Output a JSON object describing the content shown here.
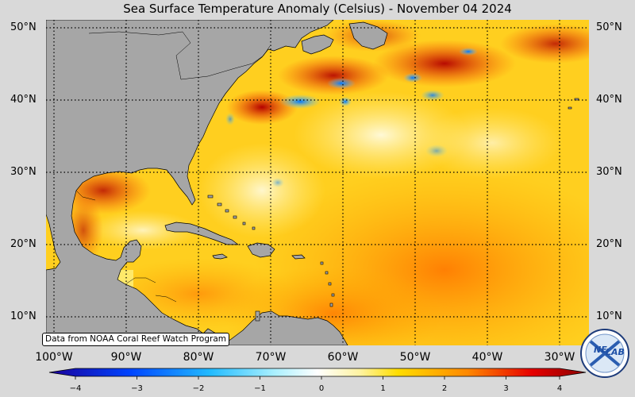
{
  "title": "Sea Surface Temperature Anomaly (Celsius) - November 04 2024",
  "credit": "Data from NOAA Coral Reef Watch Program",
  "lat_labels_left": [
    "50°N",
    "40°N",
    "30°N",
    "20°N",
    "10°N"
  ],
  "lat_labels_right": [
    "50°N",
    "40°N",
    "30°N",
    "20°N",
    "10°N"
  ],
  "lon_labels": [
    "100°W",
    "90°W",
    "80°W",
    "70°W",
    "60°W",
    "50°W",
    "40°W",
    "30°W"
  ],
  "colorbar": {
    "ticks": [
      "−4",
      "−3",
      "−2",
      "−1",
      "0",
      "1",
      "2",
      "3",
      "4"
    ],
    "range": [
      -4,
      4
    ],
    "colors": [
      "#1a0099",
      "#0066ff",
      "#33ccff",
      "#ffffff",
      "#ffe400",
      "#ff9900",
      "#e60000",
      "#990000"
    ]
  },
  "map": {
    "lon_range": [
      -101,
      -26
    ],
    "lat_range": [
      6,
      51
    ],
    "land_color": "#a6a6a6",
    "logo": "NESDIS-lab-logo"
  }
}
